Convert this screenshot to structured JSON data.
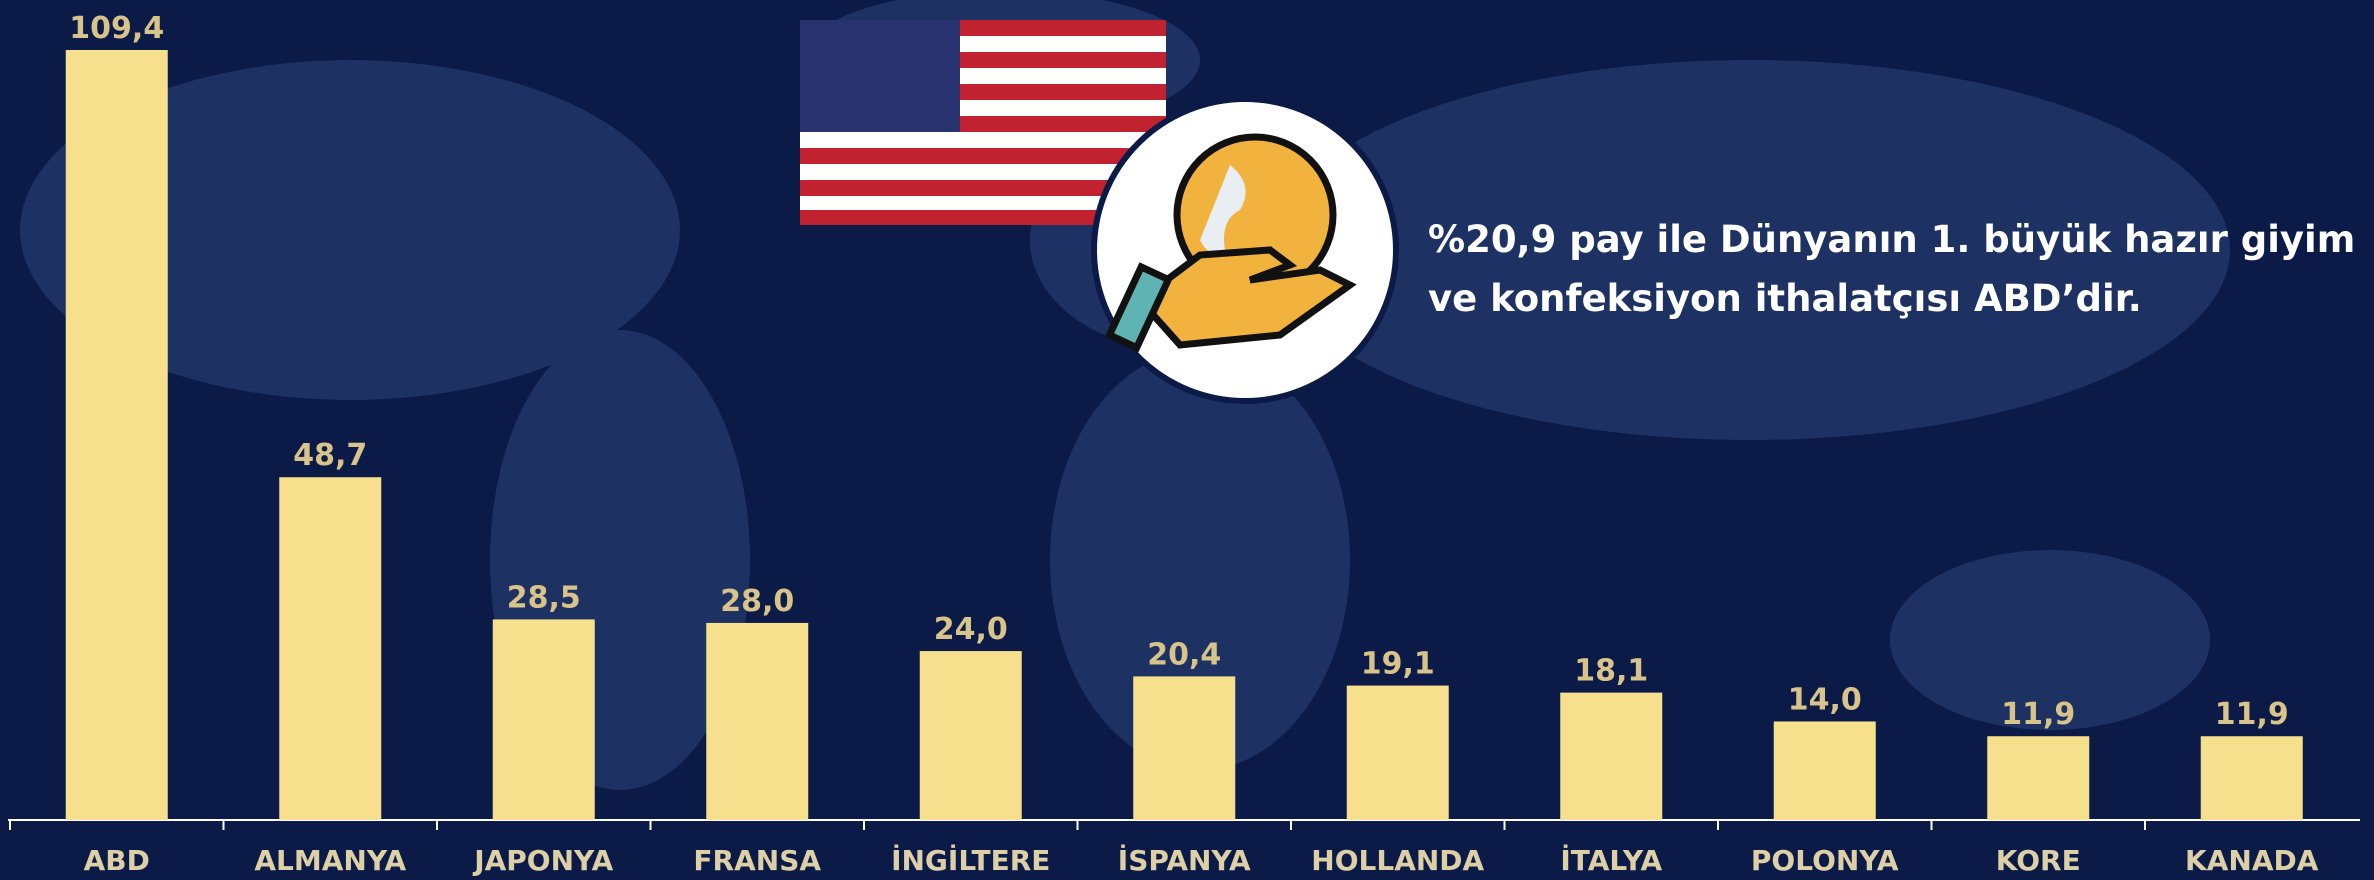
{
  "chart_data": {
    "type": "bar",
    "categories": [
      "ABD",
      "ALMANYA",
      "JAPONYA",
      "FRANSA",
      "İNGİLTERE",
      "İSPANYA",
      "HOLLANDA",
      "İTALYA",
      "POLONYA",
      "KORE",
      "KANADA"
    ],
    "values": [
      109.4,
      48.7,
      28.5,
      28.0,
      24.0,
      20.4,
      19.1,
      18.1,
      14.0,
      11.9,
      11.9
    ],
    "value_labels": [
      "109,4",
      "48,7",
      "28,5",
      "28,0",
      "24,0",
      "20,4",
      "19,1",
      "18,1",
      "14,0",
      "11,9",
      "11,9"
    ],
    "color": "#f6e08e",
    "annotation": [
      "%20,9 pay ile Dünyanın 1. büyük hazır giyim",
      "ve konfeksiyon ithalatçısı ABD’dir."
    ]
  }
}
